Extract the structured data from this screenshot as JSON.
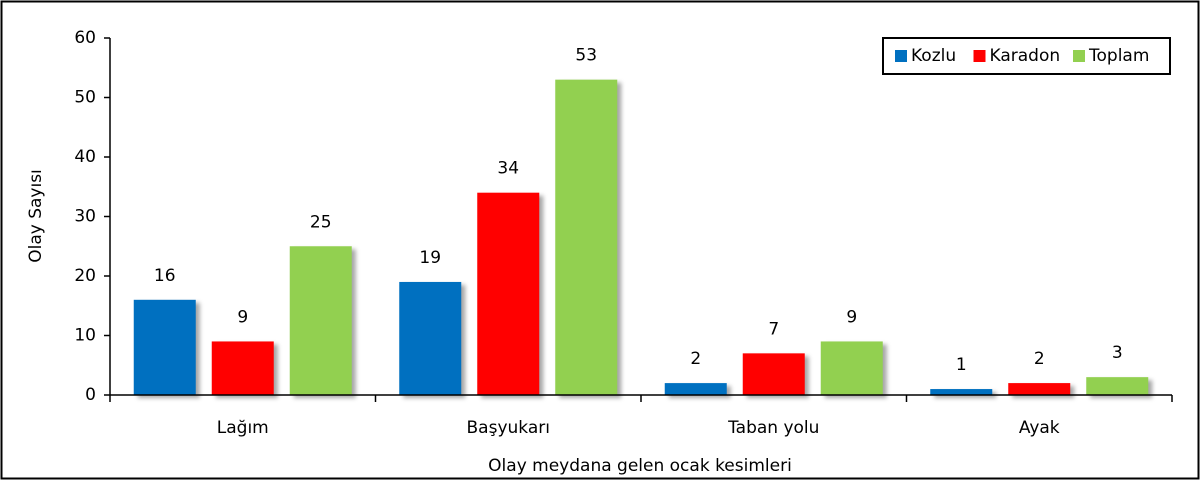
{
  "chart_data": {
    "type": "bar",
    "y_label": "Olay Sayısı",
    "x_label": "Olay meydana gelen ocak kesimleri",
    "categories": [
      "Lağım",
      "Başyukarı",
      "Taban yolu",
      "Ayak"
    ],
    "series": [
      {
        "name": "Kozlu",
        "color": "#0070c0",
        "values": [
          16,
          19,
          2,
          1
        ]
      },
      {
        "name": "Karadon",
        "color": "#ff0000",
        "values": [
          9,
          34,
          7,
          2
        ]
      },
      {
        "name": "Toplam",
        "color": "#92d050",
        "values": [
          25,
          53,
          9,
          3
        ]
      }
    ],
    "ylim": [
      0,
      60
    ],
    "yticks": [
      0,
      10,
      20,
      30,
      40,
      50,
      60
    ],
    "grid": false,
    "legend": "upper right",
    "data_labels": true
  }
}
